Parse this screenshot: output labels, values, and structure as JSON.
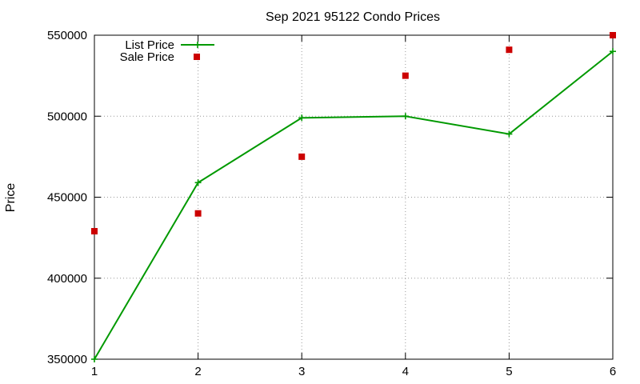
{
  "chart_data": {
    "type": "line",
    "title": "Sep 2021 95122 Condo Prices",
    "xlabel": "",
    "ylabel": "Price",
    "xlim": [
      1,
      6
    ],
    "ylim": [
      350000,
      550000
    ],
    "x_ticks": [
      1,
      2,
      3,
      4,
      5,
      6
    ],
    "y_ticks": [
      350000,
      400000,
      450000,
      500000,
      550000
    ],
    "grid": true,
    "legend_position": "top-left",
    "series": [
      {
        "name": "List Price",
        "style": "line-points",
        "color": "#009900",
        "x": [
          1,
          2,
          3,
          4,
          5,
          6
        ],
        "values": [
          350000,
          459000,
          499000,
          500000,
          489000,
          540000
        ]
      },
      {
        "name": "Sale Price",
        "style": "points",
        "color": "#cc0000",
        "x": [
          1,
          2,
          3,
          4,
          5,
          6
        ],
        "values": [
          429000,
          440000,
          475000,
          525000,
          541000,
          550000
        ]
      }
    ]
  }
}
